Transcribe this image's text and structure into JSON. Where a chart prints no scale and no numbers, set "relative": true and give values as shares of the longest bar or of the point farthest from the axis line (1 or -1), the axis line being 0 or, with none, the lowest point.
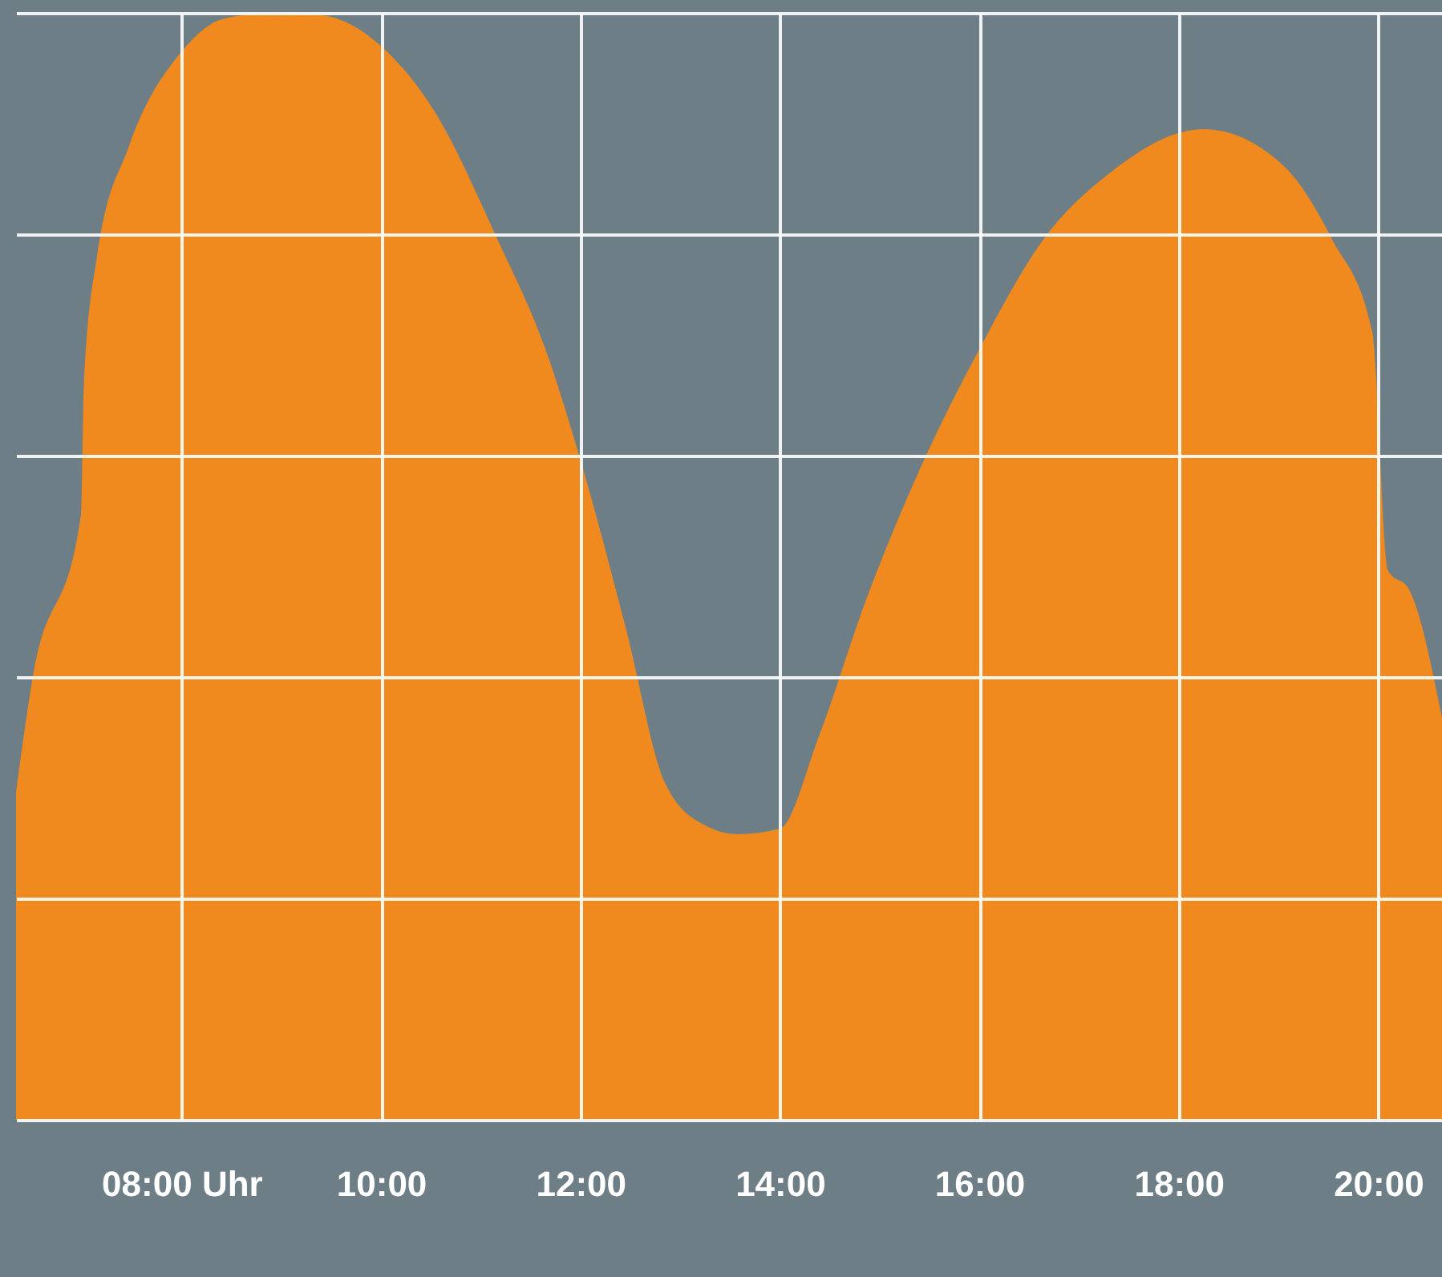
{
  "chart_data": {
    "type": "area",
    "relative": true,
    "grid": true,
    "x": [
      6.34,
      6.5,
      6.99,
      7.02,
      7.15,
      7.47,
      8.0,
      8.43,
      8.92,
      9.4,
      10.0,
      10.53,
      11.17,
      11.65,
      12.0,
      12.45,
      12.85,
      13.25,
      13.58,
      14.0,
      14.39,
      14.87,
      15.36,
      16.0,
      16.64,
      17.29,
      18.25,
      19.05,
      19.54,
      19.94,
      20.1,
      20.31,
      20.64
    ],
    "xlim": [
      6.34,
      20.64
    ],
    "xticks": [
      {
        "value": 8,
        "label": "08:00 Uhr"
      },
      {
        "value": 10,
        "label": "10:00"
      },
      {
        "value": 12,
        "label": "12:00"
      },
      {
        "value": 14,
        "label": "14:00"
      },
      {
        "value": 16,
        "label": "16:00"
      },
      {
        "value": 18,
        "label": "18:00"
      },
      {
        "value": 20,
        "label": "20:00"
      }
    ],
    "series": [
      {
        "color": "#f08a1e",
        "values": [
          0.296,
          0.396,
          0.546,
          0.662,
          0.779,
          0.879,
          0.965,
          0.995,
          1.0,
          0.998,
          0.97,
          0.912,
          0.795,
          0.696,
          0.596,
          0.446,
          0.304,
          0.266,
          0.258,
          0.263,
          0.346,
          0.471,
          0.579,
          0.696,
          0.795,
          0.854,
          0.895,
          0.862,
          0.795,
          0.712,
          0.496,
          0.479,
          0.363
        ]
      }
    ]
  }
}
